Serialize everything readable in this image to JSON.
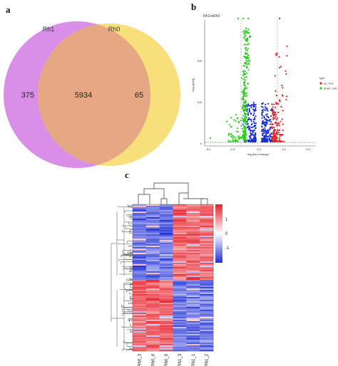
{
  "panels": {
    "a": "a",
    "b": "b",
    "c": "c"
  },
  "venn": {
    "sets": [
      {
        "name": "Rh1",
        "color": "#d98ee8"
      },
      {
        "name": "Rh0",
        "color": "#f7df7c"
      }
    ],
    "overlap_color": "#e6a882",
    "counts": {
      "only_rh1": "375",
      "both": "5934",
      "only_rh0": "65"
    }
  },
  "volcano": {
    "title": "Rh1vsRh0",
    "xlabel": "log₂(fold change)",
    "ylabel": "-log₁₀(padj)",
    "x_ticks": [
      "-5.0",
      "-2.5",
      "0.0",
      "2.5",
      "5.0"
    ],
    "y_ticks": [
      "0",
      "100",
      "200"
    ],
    "legend": {
      "title": "type",
      "items": [
        {
          "label": "up: 413",
          "color": "#e0251f"
        },
        {
          "label": "down: 146",
          "color": "#2ecc1f"
        }
      ]
    },
    "colors": {
      "up": "#e0251f",
      "down": "#2ecc1f",
      "ns": "#1a2fd0"
    }
  },
  "heatmap": {
    "samples": [
      "Rh0_3",
      "Rh0_4",
      "Rh0_5",
      "Rh1_3",
      "Rh1_1",
      "Rh1_2"
    ],
    "scale_labels": [
      "1",
      "0",
      "-1"
    ],
    "colors": {
      "high": "#e8202a",
      "mid": "#ffffff",
      "low": "#2130d6"
    }
  }
}
